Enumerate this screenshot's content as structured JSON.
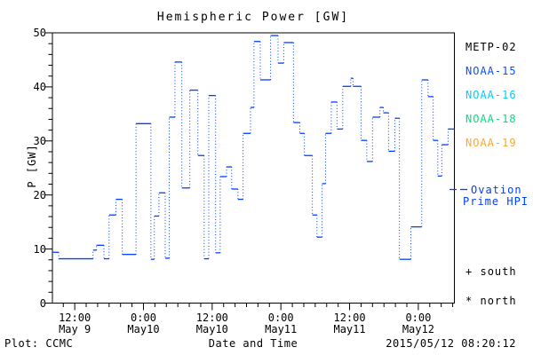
{
  "title": "Hemispheric Power [GW]",
  "axes": {
    "ylabel": "P [GW]",
    "xlabel": "Date and Time",
    "y_ticks": [
      "0",
      "10",
      "20",
      "30",
      "40",
      "50"
    ],
    "x_ticks": [
      {
        "time": "12:00",
        "date": "May 9"
      },
      {
        "time": "0:00",
        "date": "May10"
      },
      {
        "time": "12:00",
        "date": "May10"
      },
      {
        "time": "0:00",
        "date": "May11"
      },
      {
        "time": "12:00",
        "date": "May11"
      },
      {
        "time": "0:00",
        "date": "May12"
      }
    ]
  },
  "legend": {
    "satellites": [
      {
        "label": "METP-02",
        "color": "#000000"
      },
      {
        "label": "NOAA-15",
        "color": "#0055ff"
      },
      {
        "label": "NOAA-16",
        "color": "#00ccff"
      },
      {
        "label": "NOAA-18",
        "color": "#00e080"
      },
      {
        "label": "NOAA-19",
        "color": "#ffa530"
      }
    ],
    "model": {
      "label_line1": "Ovation",
      "label_line2": "Prime HPI",
      "color": "#0040ff"
    },
    "markers": [
      {
        "symbol": "+",
        "label": "south"
      },
      {
        "symbol": "*",
        "label": "north"
      }
    ]
  },
  "footer": {
    "left": "Plot: CCMC",
    "right": "2015/05/12 08:20:12"
  },
  "chart_data": {
    "type": "line",
    "style": "step-histogram, dotted risers",
    "series_name": "Ovation Prime HPI",
    "title": "Hemispheric Power [GW]",
    "xlabel": "Date and Time",
    "ylabel": "P [GW]",
    "x_unit": "hours since 2015-05-09 00:00 UT",
    "xlim": [
      8.1,
      78.3
    ],
    "ylim": [
      0,
      50
    ],
    "x_major_ticks_hours": [
      12,
      24,
      36,
      48,
      60,
      72
    ],
    "x_minor_step_hours": 2,
    "y_major_step": 10,
    "y_minor_step": 2,
    "line_color": "#0040ff",
    "steps": [
      [
        8.1,
        9.4
      ],
      [
        9.2,
        8.2
      ],
      [
        15.2,
        9.8
      ],
      [
        15.8,
        10.7
      ],
      [
        17.1,
        8.2
      ],
      [
        18.0,
        16.3
      ],
      [
        19.2,
        19.2
      ],
      [
        20.3,
        9.0
      ],
      [
        22.7,
        33.2
      ],
      [
        25.3,
        8.1
      ],
      [
        25.9,
        16.1
      ],
      [
        26.7,
        20.4
      ],
      [
        27.8,
        8.3
      ],
      [
        28.5,
        34.4
      ],
      [
        29.5,
        44.6
      ],
      [
        30.7,
        21.3
      ],
      [
        32.1,
        39.4
      ],
      [
        33.5,
        27.3
      ],
      [
        34.6,
        8.2
      ],
      [
        35.4,
        38.4
      ],
      [
        36.6,
        9.3
      ],
      [
        37.4,
        23.4
      ],
      [
        38.5,
        25.2
      ],
      [
        39.4,
        21.1
      ],
      [
        40.5,
        19.2
      ],
      [
        41.4,
        31.4
      ],
      [
        42.7,
        36.2
      ],
      [
        43.3,
        48.4
      ],
      [
        44.4,
        41.3
      ],
      [
        46.2,
        49.5
      ],
      [
        47.5,
        44.4
      ],
      [
        48.5,
        48.2
      ],
      [
        50.2,
        33.4
      ],
      [
        51.3,
        31.4
      ],
      [
        52.1,
        27.3
      ],
      [
        53.5,
        16.3
      ],
      [
        54.3,
        12.2
      ],
      [
        55.2,
        22.1
      ],
      [
        55.8,
        31.4
      ],
      [
        56.8,
        37.2
      ],
      [
        57.8,
        32.2
      ],
      [
        58.8,
        40.1
      ],
      [
        60.2,
        41.6
      ],
      [
        60.6,
        40.1
      ],
      [
        62.0,
        30.1
      ],
      [
        63.0,
        26.2
      ],
      [
        64.0,
        34.4
      ],
      [
        65.3,
        36.2
      ],
      [
        65.9,
        35.2
      ],
      [
        66.8,
        28.1
      ],
      [
        67.9,
        34.2
      ],
      [
        68.7,
        8.1
      ],
      [
        70.7,
        14.1
      ],
      [
        72.6,
        41.3
      ],
      [
        73.7,
        38.2
      ],
      [
        74.6,
        30.1
      ],
      [
        75.4,
        23.5
      ],
      [
        76.1,
        29.3
      ],
      [
        77.2,
        32.2
      ]
    ],
    "t_end": 78.3
  }
}
